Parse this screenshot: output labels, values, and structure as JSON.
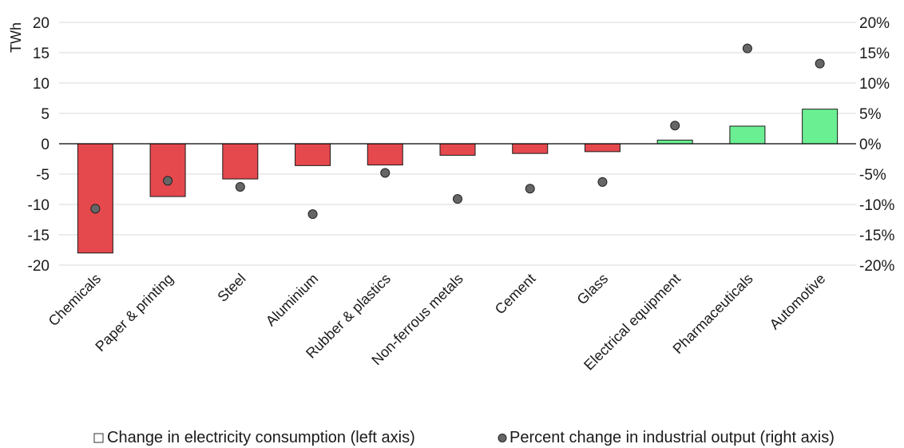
{
  "chart_data": {
    "type": "bar",
    "categories": [
      "Chemicals",
      "Paper & printing",
      "Steel",
      "Aluminium",
      "Rubber & plastics",
      "Non-ferrous metals",
      "Cement",
      "Glass",
      "Electrical equipment",
      "Pharmaceuticals",
      "Automotive"
    ],
    "series": [
      {
        "name": "Change in electricity consumption (left axis)",
        "axis": "left",
        "mark": "bar",
        "values": [
          -18.0,
          -8.7,
          -5.8,
          -3.6,
          -3.5,
          -1.9,
          -1.6,
          -1.3,
          0.6,
          2.9,
          5.7
        ]
      },
      {
        "name": "Percent change in industrial output (right axis)",
        "axis": "right",
        "mark": "dot",
        "values": [
          -10.7,
          -6.1,
          -7.1,
          -11.6,
          -4.8,
          -9.1,
          -7.4,
          -6.3,
          3.0,
          15.7,
          13.2
        ]
      }
    ],
    "ylabel_left": "TWh",
    "ylim_left": [
      -20,
      20
    ],
    "yticks_left": [
      "20",
      "15",
      "10",
      "5",
      "0",
      "-5",
      "-10",
      "-15",
      "-20"
    ],
    "ylim_right": [
      -20,
      20
    ],
    "yticks_right": [
      "20%",
      "15%",
      "10%",
      "5%",
      "0%",
      "-5%",
      "-10%",
      "-15%",
      "-20%"
    ],
    "grid": true,
    "legend_position": "bottom",
    "colors": {
      "negative_bar": "#e5484d",
      "positive_bar": "#6bef93",
      "dot": "#666666",
      "grid": "#d9d9d9"
    }
  }
}
